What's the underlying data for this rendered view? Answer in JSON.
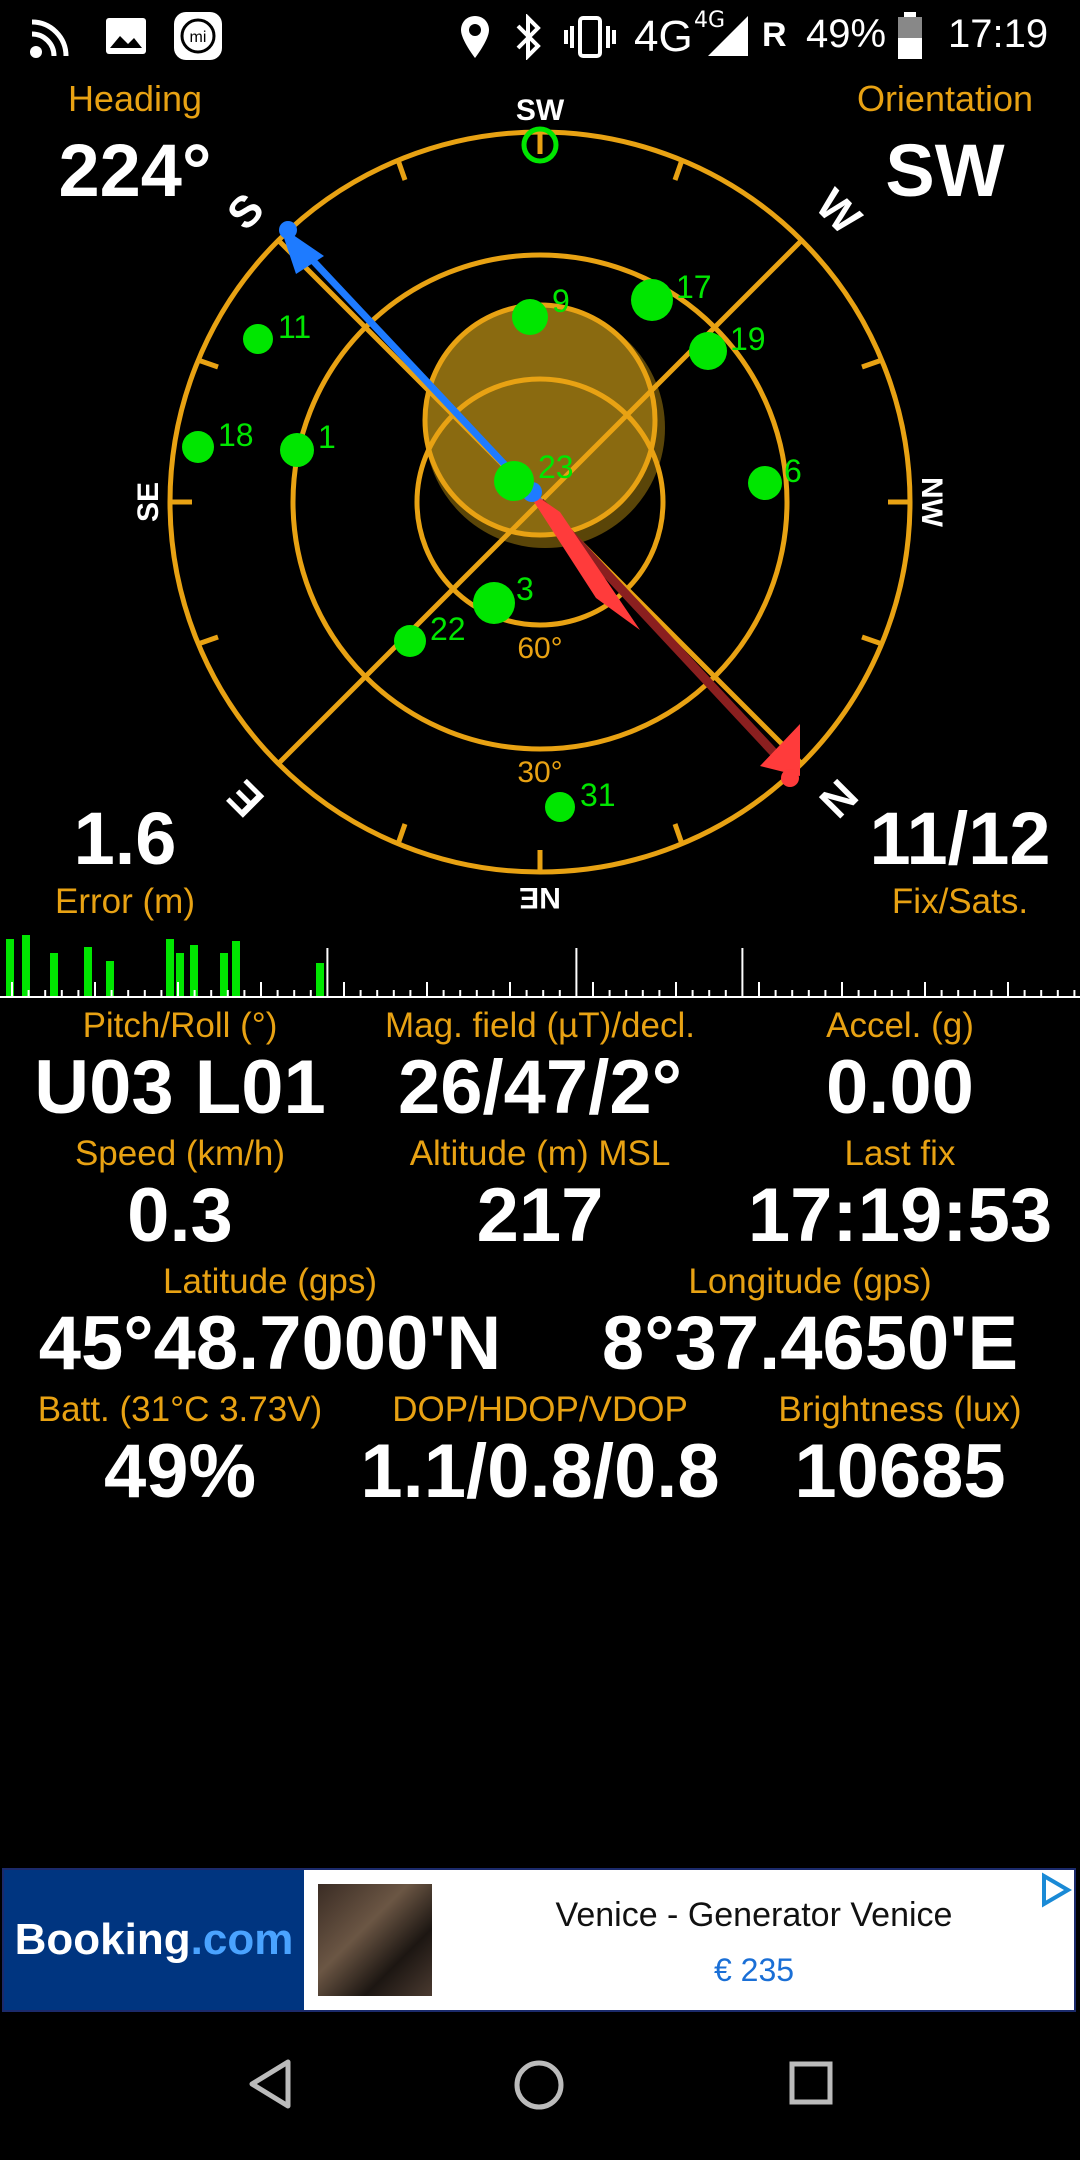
{
  "status_bar": {
    "network": "4G",
    "network_sup": "4G",
    "roaming": "R",
    "battery": "49%",
    "time": "17:19"
  },
  "compass": {
    "heading_label": "Heading",
    "heading_value": "224°",
    "orientation_label": "Orientation",
    "orientation_value": "SW",
    "heading_degrees": 224,
    "directions": {
      "top": "SW",
      "left": "SE",
      "right": "NW",
      "bottom": "NE",
      "upper_left": "S",
      "upper_right": "W",
      "lower_left": "E",
      "lower_right": "N"
    },
    "elevation_labels": [
      "60°",
      "30°"
    ],
    "satellites": [
      {
        "id": "9"
      },
      {
        "id": "17"
      },
      {
        "id": "11"
      },
      {
        "id": "19"
      },
      {
        "id": "18"
      },
      {
        "id": "1"
      },
      {
        "id": "23"
      },
      {
        "id": "6"
      },
      {
        "id": "3"
      },
      {
        "id": "22"
      },
      {
        "id": "31"
      }
    ],
    "error_value": "1.6",
    "error_label": "Error (m)",
    "fix_value": "11/12",
    "fix_label": "Fix/Sats."
  },
  "colors": {
    "accent": "#e8a213",
    "satellite": "#00e600",
    "needle_north": "#ff3b3b",
    "needle_south": "#1e7bff",
    "accuracy": "#8a6a10"
  },
  "stats": {
    "pitch_label": "Pitch/Roll (°)",
    "pitch_value": "U03 L01",
    "mag_label": "Mag. field (µT)/decl.",
    "mag_value": "26/47/2°",
    "accel_label": "Accel. (g)",
    "accel_value": "0.00",
    "speed_label": "Speed (km/h)",
    "speed_value": "0.3",
    "altitude_label": "Altitude (m) MSL",
    "altitude_value": "217",
    "lastfix_label": "Last fix",
    "lastfix_value": "17:19:53",
    "lat_label": "Latitude (gps)",
    "lat_value": "45°48.7000'N",
    "lon_label": "Longitude (gps)",
    "lon_value": "8°37.4650'E",
    "batt_label": "Batt. (31°C 3.73V)",
    "batt_value": "49%",
    "dop_label": "DOP/HDOP/VDOP",
    "dop_value": "1.1/0.8/0.8",
    "bright_label": "Brightness (lux)",
    "bright_value": "10685"
  },
  "ad": {
    "brand": "Booking",
    "brand_suffix": ".com",
    "title": "Venice - Generator Venice",
    "price": "€ 235"
  }
}
